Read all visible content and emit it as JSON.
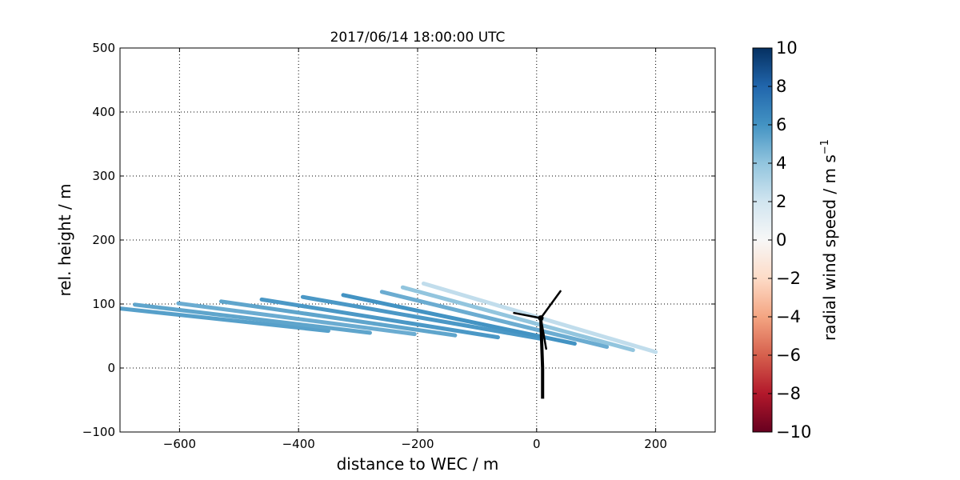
{
  "chart_data": {
    "type": "line",
    "title": "2017/06/14 18:00:00 UTC",
    "xlabel": "distance to WEC / m",
    "ylabel": "rel. height / m",
    "xlim": [
      -700,
      300
    ],
    "ylim": [
      -100,
      500
    ],
    "xticks": [
      -600,
      -400,
      -200,
      0,
      200
    ],
    "yticks": [
      -100,
      0,
      100,
      200,
      300,
      400,
      500
    ],
    "xtick_labels": [
      "−600",
      "−400",
      "−200",
      "0",
      "200"
    ],
    "ytick_labels": [
      "−100",
      "0",
      "100",
      "200",
      "300",
      "400",
      "500"
    ],
    "grid": true,
    "colormap": "RdBu",
    "series": [
      {
        "x": [
          -700,
          -350
        ],
        "y": [
          93,
          58
        ],
        "value": 5.5
      },
      {
        "x": [
          -675,
          -280
        ],
        "y": [
          99,
          55
        ],
        "value": 5.3
      },
      {
        "x": [
          -602,
          -205
        ],
        "y": [
          101,
          53
        ],
        "value": 5.0
      },
      {
        "x": [
          -530,
          -137
        ],
        "y": [
          104,
          51
        ],
        "value": 5.3
      },
      {
        "x": [
          -462,
          -65
        ],
        "y": [
          107,
          48
        ],
        "value": 5.8
      },
      {
        "x": [
          -393,
          5
        ],
        "y": [
          111,
          46
        ],
        "value": 5.8
      },
      {
        "x": [
          -325,
          64
        ],
        "y": [
          114,
          38
        ],
        "value": 6.0
      },
      {
        "x": [
          -260,
          118
        ],
        "y": [
          119,
          33
        ],
        "value": 5.0
      },
      {
        "x": [
          -225,
          162
        ],
        "y": [
          126,
          28
        ],
        "value": 4.0
      },
      {
        "x": [
          -190,
          200
        ],
        "y": [
          132,
          25
        ],
        "value": 2.5
      }
    ],
    "turbine": {
      "hub": [
        7,
        78
      ],
      "tower": [
        [
          7,
          78
        ],
        [
          10,
          0
        ],
        [
          10,
          -48
        ]
      ],
      "blades": [
        [
          [
            7,
            78
          ],
          [
            40,
            120
          ]
        ],
        [
          [
            7,
            78
          ],
          [
            -38,
            86
          ]
        ],
        [
          [
            7,
            78
          ],
          [
            16,
            30
          ]
        ]
      ],
      "color": "#000000"
    },
    "colorbar": {
      "label": "radial wind speed / m s",
      "label_superscript": "−1",
      "range": [
        -10,
        10
      ],
      "ticks": [
        10,
        8,
        6,
        4,
        2,
        0,
        -2,
        -4,
        -6,
        -8,
        -10
      ],
      "tick_labels": [
        "10",
        "8",
        "6",
        "4",
        "2",
        "0",
        "−2",
        "−4",
        "−6",
        "−8",
        "−10"
      ]
    }
  }
}
